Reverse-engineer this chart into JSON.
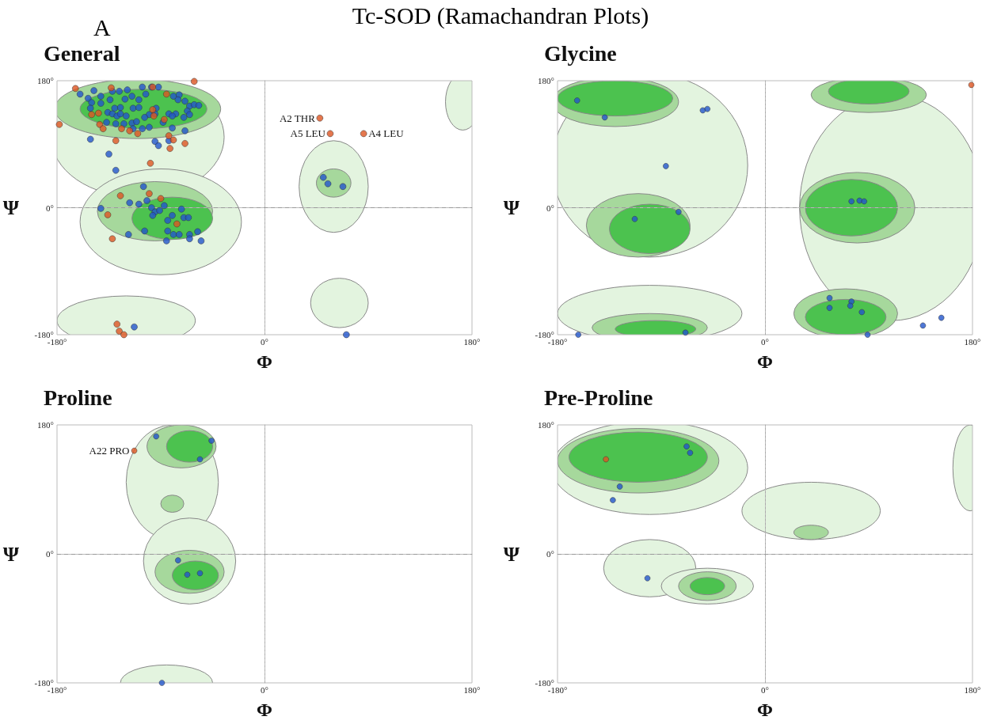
{
  "chart_data": [
    {
      "type": "scatter",
      "title": "General",
      "xlabel": "Φ",
      "ylabel": "Ψ",
      "xlim": [
        -180,
        180
      ],
      "ylim": [
        -180,
        180
      ],
      "xticks": [
        {
          "value": -180,
          "label": "-180°"
        },
        {
          "value": 0,
          "label": "0°"
        },
        {
          "value": 180,
          "label": "180°"
        }
      ],
      "yticks": [
        {
          "value": -180,
          "label": "-180°"
        },
        {
          "value": 0,
          "label": "0°"
        },
        {
          "value": 180,
          "label": "180°"
        }
      ],
      "marker": "circle",
      "ref_lines": [
        {
          "axis": "x",
          "value": 0,
          "line_style": "dotted",
          "color": "#aaaaaa"
        },
        {
          "axis": "y",
          "value": 0,
          "line_style": "dashed",
          "color": "#999999"
        }
      ],
      "annotations": [
        "Tc-SOD (Ramachandran Plots)",
        "A",
        {
          "text": "A2 THR",
          "x": 48,
          "y": 127
        },
        {
          "text": "A5 LEU",
          "x": 57,
          "y": 105
        },
        {
          "text": "A4 LEU",
          "x": 86,
          "y": 105
        }
      ],
      "series": [
        {
          "color": "#2255cc",
          "x": [
            -160,
            -148,
            -142,
            -153,
            -150,
            -142,
            -151,
            -132,
            -126,
            -119,
            -106,
            -98,
            -92,
            -103,
            -115,
            -121,
            -109,
            -134,
            -125,
            -130,
            -114,
            -109,
            -94,
            -95,
            -100,
            -104,
            -79,
            -74,
            -75,
            -69,
            -65,
            -61,
            -57,
            -67,
            -65,
            -70,
            -77,
            -83,
            -80,
            -136,
            -132,
            -128,
            -125,
            -120,
            -137,
            -129,
            -122,
            -115,
            -111,
            -106,
            -100,
            -114,
            -88,
            -80,
            -69,
            -83,
            -151,
            -95,
            -92,
            -135,
            -129,
            -105,
            -117,
            -109,
            -102,
            -142,
            -98,
            -95,
            -91,
            -87,
            -97,
            -72,
            -80,
            -84,
            -70,
            -66,
            -118,
            -104,
            -84,
            -79,
            -74,
            -65,
            -58,
            -65,
            -55,
            -85,
            -113,
            71,
            51,
            55,
            68
          ],
          "values": [
            161,
            166,
            158,
            155,
            149,
            148,
            141,
            165,
            165,
            167,
            171,
            171,
            171,
            161,
            158,
            154,
            153,
            153,
            142,
            141,
            141,
            142,
            141,
            133,
            132,
            128,
            158,
            160,
            153,
            151,
            144,
            146,
            145,
            137,
            132,
            128,
            133,
            133,
            130,
            135,
            133,
            130,
            133,
            130,
            121,
            119,
            119,
            120,
            122,
            112,
            114,
            112,
            121,
            113,
            109,
            95,
            97,
            94,
            88,
            76,
            53,
            30,
            7,
            5,
            10,
            -1,
            0,
            -6,
            -4,
            3,
            -11,
            -2,
            -11,
            -18,
            -14,
            -14,
            -38,
            -33,
            -33,
            -38,
            -38,
            -38,
            -34,
            -44,
            -47,
            -47,
            -169,
            -180,
            43,
            34,
            30
          ]
        },
        {
          "color": "#dd5522",
          "x": [
            -164,
            -133,
            -97,
            -85,
            -61,
            -150,
            -144,
            -97,
            -87,
            -143,
            -124,
            -117,
            -110,
            -178,
            -140,
            -129,
            -83,
            -79,
            -69,
            -82,
            -99,
            -96,
            -125,
            -100,
            -90,
            -136,
            -76,
            -132,
            -128,
            -126,
            -122,
            48,
            57,
            86
          ],
          "values": [
            169,
            170,
            171,
            161,
            179,
            132,
            134,
            139,
            125,
            118,
            112,
            109,
            105,
            118,
            112,
            95,
            102,
            96,
            91,
            84,
            63,
            130,
            17,
            20,
            13,
            -10,
            -23,
            -44,
            -165,
            -175,
            -180,
            127,
            105,
            105
          ]
        }
      ]
    },
    {
      "type": "scatter",
      "title": "Glycine",
      "xlabel": "Φ",
      "ylabel": "Ψ",
      "xlim": [
        -180,
        180
      ],
      "ylim": [
        -180,
        180
      ],
      "xticks": [
        {
          "value": -180,
          "label": "-180°"
        },
        {
          "value": 0,
          "label": "0°"
        },
        {
          "value": 180,
          "label": "180°"
        }
      ],
      "yticks": [
        {
          "value": -180,
          "label": "-180°"
        },
        {
          "value": 0,
          "label": "0°"
        },
        {
          "value": 180,
          "label": "180°"
        }
      ],
      "marker": "circle",
      "ref_lines": [
        {
          "axis": "x",
          "value": 0,
          "line_style": "dotted",
          "color": "#aaaaaa"
        },
        {
          "axis": "y",
          "value": 0,
          "line_style": "dashed",
          "color": "#999999"
        }
      ],
      "series": [
        {
          "color": "#2255cc",
          "x": [
            -163,
            -139,
            -54,
            -50,
            -86,
            -113,
            -75,
            75,
            82,
            86,
            56,
            56,
            75,
            74,
            84,
            89,
            137,
            153,
            -162,
            -69
          ],
          "values": [
            152,
            128,
            138,
            140,
            59,
            -16,
            -6,
            9,
            10,
            9,
            -128,
            -142,
            -133,
            -139,
            -148,
            -180,
            -167,
            -156,
            -180,
            -177
          ]
        },
        {
          "color": "#dd5522",
          "x": [
            179
          ],
          "values": [
            174
          ]
        }
      ]
    },
    {
      "type": "scatter",
      "title": "Proline",
      "xlabel": "Φ",
      "ylabel": "Ψ",
      "xlim": [
        -180,
        180
      ],
      "ylim": [
        -180,
        180
      ],
      "xticks": [
        {
          "value": -180,
          "label": "-180°"
        },
        {
          "value": 0,
          "label": "0°"
        },
        {
          "value": 180,
          "label": "180°"
        }
      ],
      "yticks": [
        {
          "value": -180,
          "label": "-180°"
        },
        {
          "value": 0,
          "label": "0°"
        },
        {
          "value": 180,
          "label": "180°"
        }
      ],
      "marker": "circle",
      "ref_lines": [
        {
          "axis": "x",
          "value": 0,
          "line_style": "dotted",
          "color": "#aaaaaa"
        },
        {
          "axis": "y",
          "value": 0,
          "line_style": "dashed",
          "color": "#999999"
        }
      ],
      "annotations": [
        {
          "text": "A22 PRO",
          "x": -113,
          "y": 144
        }
      ],
      "series": [
        {
          "color": "#2255cc",
          "x": [
            -94,
            -46,
            -56,
            -75,
            -67,
            -56,
            -89
          ],
          "values": [
            164,
            158,
            132,
            -9,
            -29,
            -27,
            -180
          ]
        },
        {
          "color": "#dd5522",
          "x": [
            -113
          ],
          "values": [
            144
          ]
        }
      ]
    },
    {
      "type": "scatter",
      "title": "Pre-Proline",
      "xlabel": "Φ",
      "ylabel": "Ψ",
      "xlim": [
        -180,
        180
      ],
      "ylim": [
        -180,
        180
      ],
      "xticks": [
        {
          "value": -180,
          "label": "-180°"
        },
        {
          "value": 0,
          "label": "0°"
        },
        {
          "value": 180,
          "label": "180°"
        }
      ],
      "yticks": [
        {
          "value": -180,
          "label": "-180°"
        },
        {
          "value": 0,
          "label": "0°"
        },
        {
          "value": 180,
          "label": "180°"
        }
      ],
      "marker": "circle",
      "ref_lines": [
        {
          "axis": "x",
          "value": 0,
          "line_style": "dotted",
          "color": "#aaaaaa"
        },
        {
          "axis": "y",
          "value": 0,
          "line_style": "dashed",
          "color": "#999999"
        }
      ],
      "series": [
        {
          "color": "#2255cc",
          "x": [
            -126,
            -132,
            -68,
            -65,
            -102
          ],
          "values": [
            94,
            75,
            150,
            141,
            -34
          ]
        },
        {
          "color": "#dd5522",
          "x": [
            -138
          ],
          "values": [
            132
          ]
        }
      ]
    }
  ]
}
